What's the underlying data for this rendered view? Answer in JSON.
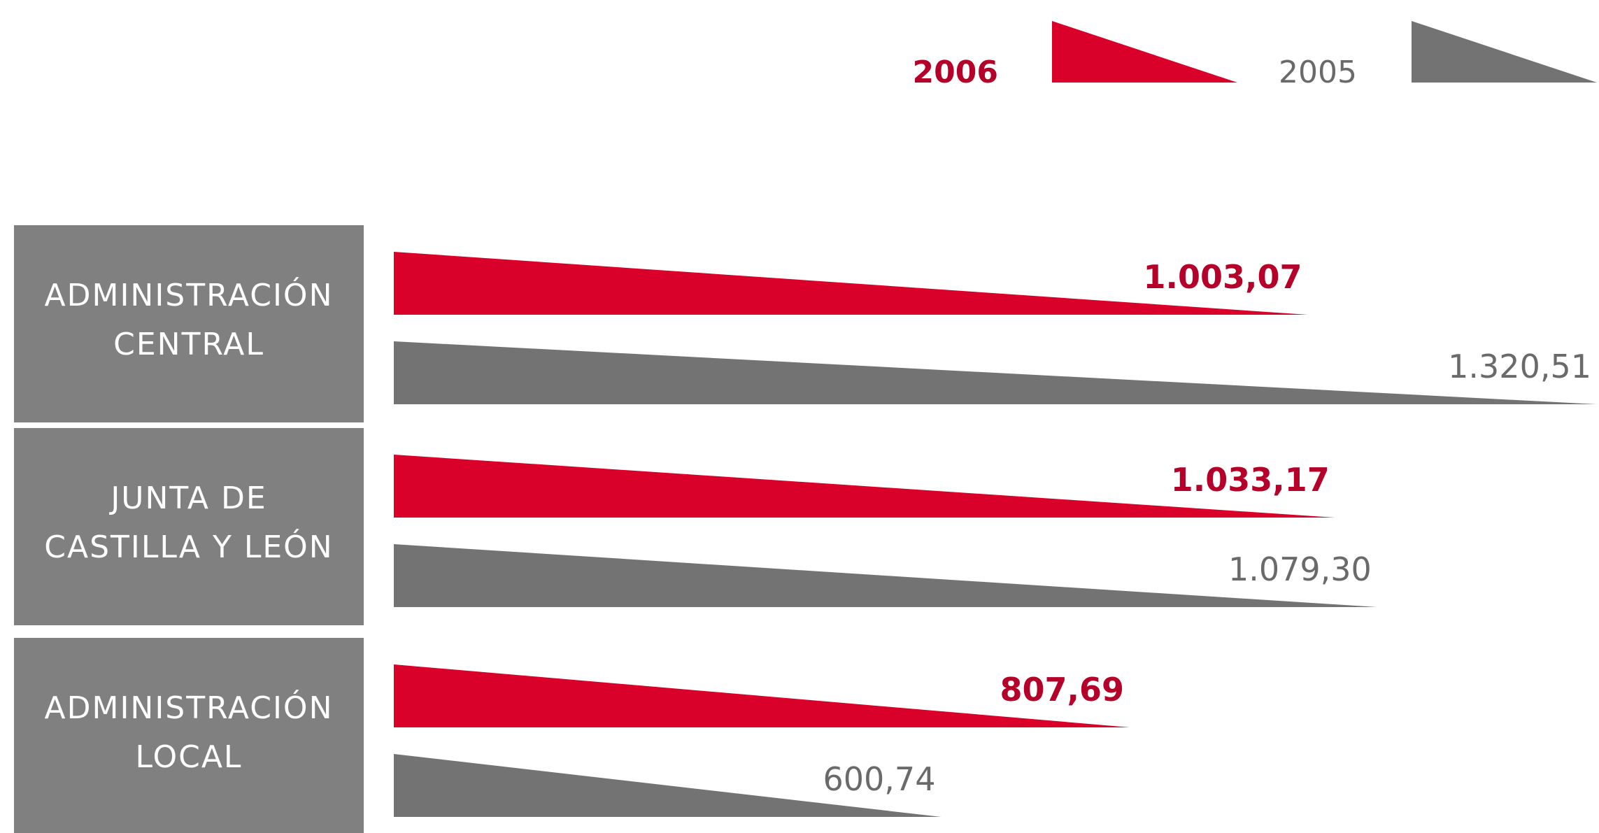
{
  "chart_data": {
    "type": "bar",
    "categories": [
      [
        "ADMINISTRACIÓN",
        "CENTRAL"
      ],
      [
        "JUNTA DE",
        "CASTILLA Y LEÓN"
      ],
      [
        "ADMINISTRACIÓN",
        "LOCAL"
      ]
    ],
    "series": [
      {
        "name": "2006",
        "values": [
          1003.07,
          1033.17,
          807.69
        ],
        "labels": [
          "1.003,07",
          "1.033,17",
          "807,69"
        ],
        "color": "#d9002a",
        "label_color": "#b5002a"
      },
      {
        "name": "2005",
        "values": [
          1320.51,
          1079.3,
          600.74
        ],
        "labels": [
          "1.320,51",
          "1.079,30",
          "600,74"
        ],
        "color": "#737373",
        "label_color": "#6a6a6a"
      }
    ],
    "xlim": [
      0,
      1320.51
    ],
    "legend_placement": "top-right",
    "label_panel_color": "#808080",
    "grid": false
  }
}
